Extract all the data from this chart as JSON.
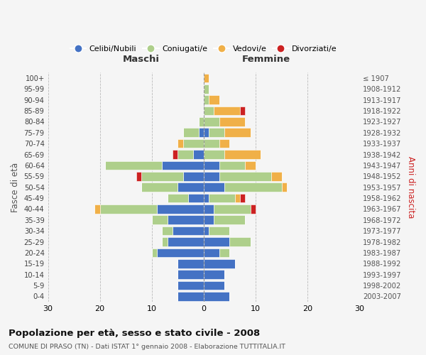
{
  "age_groups": [
    "0-4",
    "5-9",
    "10-14",
    "15-19",
    "20-24",
    "25-29",
    "30-34",
    "35-39",
    "40-44",
    "45-49",
    "50-54",
    "55-59",
    "60-64",
    "65-69",
    "70-74",
    "75-79",
    "80-84",
    "85-89",
    "90-94",
    "95-99",
    "100+"
  ],
  "birth_years": [
    "2003-2007",
    "1998-2002",
    "1993-1997",
    "1988-1992",
    "1983-1987",
    "1978-1982",
    "1973-1977",
    "1968-1972",
    "1963-1967",
    "1958-1962",
    "1953-1957",
    "1948-1952",
    "1943-1947",
    "1938-1942",
    "1933-1937",
    "1928-1932",
    "1923-1927",
    "1918-1922",
    "1913-1917",
    "1908-1912",
    "≤ 1907"
  ],
  "male": {
    "celibi": [
      5,
      5,
      5,
      5,
      9,
      7,
      6,
      7,
      9,
      3,
      5,
      4,
      8,
      2,
      0,
      1,
      0,
      0,
      0,
      0,
      0
    ],
    "coniugati": [
      0,
      0,
      0,
      0,
      1,
      1,
      2,
      3,
      11,
      4,
      7,
      8,
      11,
      3,
      4,
      3,
      1,
      0,
      0,
      0,
      0
    ],
    "vedovi": [
      0,
      0,
      0,
      0,
      0,
      0,
      0,
      0,
      1,
      0,
      0,
      0,
      0,
      0,
      1,
      0,
      0,
      0,
      0,
      0,
      0
    ],
    "divorziati": [
      0,
      0,
      0,
      0,
      0,
      0,
      0,
      0,
      0,
      0,
      0,
      1,
      0,
      1,
      0,
      0,
      0,
      0,
      0,
      0,
      0
    ]
  },
  "female": {
    "nubili": [
      5,
      4,
      4,
      6,
      3,
      5,
      1,
      2,
      2,
      1,
      4,
      3,
      3,
      0,
      0,
      1,
      0,
      0,
      0,
      0,
      0
    ],
    "coniugate": [
      0,
      0,
      0,
      0,
      2,
      4,
      4,
      6,
      7,
      5,
      11,
      10,
      5,
      4,
      3,
      3,
      3,
      2,
      1,
      1,
      0
    ],
    "vedove": [
      0,
      0,
      0,
      0,
      0,
      0,
      0,
      0,
      0,
      1,
      1,
      2,
      2,
      7,
      2,
      5,
      5,
      5,
      2,
      0,
      1
    ],
    "divorziate": [
      0,
      0,
      0,
      0,
      0,
      0,
      0,
      0,
      1,
      1,
      0,
      0,
      0,
      0,
      0,
      0,
      0,
      1,
      0,
      0,
      0
    ]
  },
  "colors": {
    "celibi": "#4472C4",
    "coniugati": "#AECF8B",
    "vedovi": "#F0B048",
    "divorziati": "#CC2222"
  },
  "title": "Popolazione per età, sesso e stato civile - 2008",
  "subtitle": "COMUNE DI PRASO (TN) - Dati ISTAT 1° gennaio 2008 - Elaborazione TUTTITALIA.IT",
  "xlabel_left": "Maschi",
  "xlabel_right": "Femmine",
  "ylabel_left": "Fasce di età",
  "ylabel_right": "Anni di nascita",
  "xlim": 30,
  "background_color": "#f5f5f5",
  "grid_color": "#cccccc"
}
